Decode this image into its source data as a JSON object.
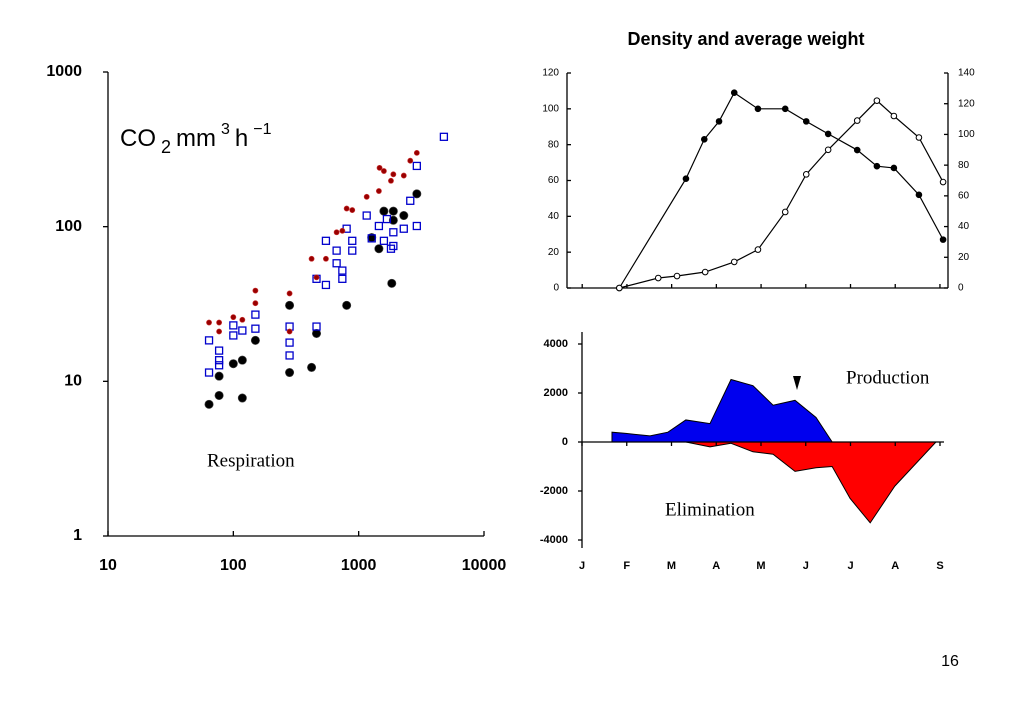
{
  "page_number": "16",
  "chart_data": [
    {
      "type": "scatter",
      "log_x": true,
      "log_y": true,
      "unit_label": [
        "CO",
        "2",
        "mm",
        "3",
        "h",
        "−1"
      ],
      "annotation": "Respiration",
      "xlim": [
        10,
        10000
      ],
      "xticks": [
        10,
        100,
        1000,
        10000
      ],
      "ylim": [
        1,
        1000
      ],
      "yticks": [
        1,
        10,
        100,
        1000
      ],
      "series": [
        {
          "marker": "circle",
          "color": "#000000",
          "x": [
            64,
            77,
            77,
            100,
            118,
            118,
            150,
            281,
            281,
            421,
            461,
            802,
            1271,
            1450,
            1590,
            1837,
            1891,
            1891,
            2291,
            2911
          ],
          "values": [
            7.1,
            8.1,
            10.8,
            13,
            13.7,
            7.8,
            18.4,
            31,
            11.4,
            12.3,
            20.4,
            31,
            85,
            72,
            126,
            43,
            110,
            126,
            118,
            163
          ]
        },
        {
          "marker": "square",
          "color": "#0000cc",
          "x": [
            64,
            64,
            77,
            77,
            77,
            100,
            100,
            118,
            150,
            150,
            281,
            281,
            281,
            461,
            461,
            548,
            548,
            667,
            667,
            741,
            741,
            802,
            889,
            889,
            1159,
            1271,
            1450,
            1590,
            1680,
            1810,
            1891,
            1891,
            2291,
            2580,
            2911,
            2911,
            4786
          ],
          "values": [
            18.4,
            11.4,
            15.8,
            13.7,
            12.7,
            23,
            19.8,
            21.3,
            21.9,
            27,
            22.6,
            17.8,
            14.7,
            22.6,
            46,
            42,
            81,
            58,
            70,
            52,
            46,
            97,
            70,
            81,
            118,
            84,
            101,
            81,
            112,
            72,
            75,
            92,
            97,
            147,
            101,
            247,
            381
          ]
        },
        {
          "marker": "dot",
          "color": "#990000",
          "x": [
            64,
            77,
            77,
            100,
            118,
            150,
            150,
            281,
            281,
            421,
            461,
            548,
            667,
            741,
            802,
            889,
            1159,
            1450,
            1468,
            1590,
            1810,
            1891,
            2291,
            2580,
            2911
          ],
          "values": [
            24,
            24,
            21,
            26,
            25,
            38.6,
            32,
            37,
            21,
            62,
            47,
            62,
            92,
            94,
            131,
            128,
            156,
            170,
            240,
            229,
            198,
            218,
            214,
            267,
            300
          ]
        }
      ]
    },
    {
      "type": "line",
      "title": "Density and average weight",
      "xlim": [
        -0.34,
        8.18
      ],
      "xticks": [
        0,
        1,
        2,
        3,
        4,
        5,
        6,
        7,
        8
      ],
      "ylim": [
        0,
        120
      ],
      "yticks": [
        0,
        20,
        40,
        60,
        80,
        100,
        120
      ],
      "y2lim": [
        0,
        140
      ],
      "y2ticks": [
        0,
        20,
        40,
        60,
        80,
        100,
        120,
        140
      ],
      "series": [
        {
          "marker": "filled",
          "color": "#000000",
          "x": [
            0.83,
            2.32,
            2.73,
            3.06,
            3.4,
            3.93,
            4.54,
            5.01,
            5.5,
            6.15,
            6.59,
            6.97,
            7.53,
            8.07
          ],
          "values": [
            0,
            61,
            83,
            93,
            109,
            100,
            100,
            93,
            86,
            77,
            68,
            67,
            52,
            27
          ]
        },
        {
          "marker": "open",
          "color": "#000000",
          "axis": "y2",
          "x": [
            0.83,
            1.7,
            2.12,
            2.75,
            3.4,
            3.93,
            4.54,
            5.01,
            5.5,
            6.15,
            6.59,
            6.97,
            7.53,
            8.07
          ],
          "values": [
            0,
            6.5,
            7.8,
            10.4,
            17,
            25,
            49.5,
            74,
            90,
            109,
            122,
            112,
            98,
            69
          ]
        }
      ]
    },
    {
      "type": "area",
      "xlim": [
        0,
        8
      ],
      "xticks": [
        {
          "value": 0,
          "label": "J"
        },
        {
          "value": 1,
          "label": "F"
        },
        {
          "value": 2,
          "label": "M"
        },
        {
          "value": 3,
          "label": "A"
        },
        {
          "value": 4,
          "label": "M"
        },
        {
          "value": 5,
          "label": "J"
        },
        {
          "value": 6,
          "label": "J"
        },
        {
          "value": 7,
          "label": "A"
        },
        {
          "value": 8,
          "label": "S"
        }
      ],
      "ylim": [
        -4000,
        4000
      ],
      "yticks": [
        -4000,
        -2000,
        0,
        2000,
        4000
      ],
      "series": [
        {
          "name": "Production",
          "color": "#0000ee",
          "x": [
            0.67,
            0.98,
            1.52,
            1.92,
            2.32,
            2.86,
            3.33,
            3.82,
            4.27,
            4.76,
            5.23,
            5.59
          ],
          "values": [
            400,
            350,
            250,
            400,
            900,
            750,
            2550,
            2300,
            1500,
            1700,
            1000,
            0
          ]
        },
        {
          "name": "Elimination",
          "color": "#ff0000",
          "x": [
            0.67,
            2.32,
            2.86,
            3.33,
            3.82,
            4.27,
            4.76,
            5.23,
            5.59,
            5.99,
            6.44,
            6.99,
            7.91
          ],
          "values": [
            0,
            0,
            -200,
            -50,
            -400,
            -500,
            -1200,
            -1050,
            -1000,
            -2300,
            -3300,
            -1800,
            0
          ]
        }
      ]
    }
  ]
}
